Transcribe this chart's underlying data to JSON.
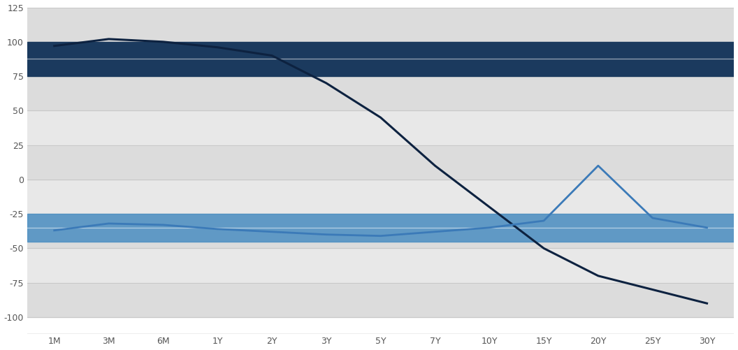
{
  "x_labels": [
    "1M",
    "3M",
    "6M",
    "1Y",
    "2Y",
    "3Y",
    "5Y",
    "7Y",
    "10Y",
    "15Y",
    "20Y",
    "25Y",
    "30Y"
  ],
  "x_positions": [
    0,
    1,
    2,
    3,
    4,
    5,
    6,
    7,
    8,
    9,
    10,
    11,
    12
  ],
  "line_2023": [
    97,
    102,
    100,
    96,
    90,
    70,
    45,
    10,
    -20,
    -50,
    -70,
    -80,
    -90
  ],
  "line_2024": [
    -37,
    -32,
    -33,
    -36,
    -38,
    -40,
    -41,
    -38,
    -35,
    -30,
    10,
    -28,
    -35
  ],
  "band_2023_low": 75,
  "band_2023_high": 100,
  "band_2024_low": -45,
  "band_2024_high": -25,
  "color_2023_band": "#1b3a5e",
  "color_2024_band": "#4a8ec2",
  "color_2023_line": "#0d2240",
  "color_2024_line": "#3b7ab8",
  "ylim": [
    -112,
    125
  ],
  "yticks": [
    -100,
    -75,
    -50,
    -25,
    0,
    25,
    50,
    75,
    100,
    125
  ],
  "ytick_labels": [
    "-100",
    "-75",
    "-50",
    "-25",
    "0",
    "25",
    "50",
    "75",
    "100",
    "125"
  ],
  "bg_color": "#ffffff",
  "plot_bg_color": "#f0f0f0",
  "grid_stripe_color": "#dcdcdc",
  "grid_line_color": "#c8c8c8",
  "text_color": "#555555",
  "axis_line_color": "#aaaaaa",
  "band_center_color": "#ffffff",
  "fig_width": 10.56,
  "fig_height": 5.01,
  "dpi": 100
}
